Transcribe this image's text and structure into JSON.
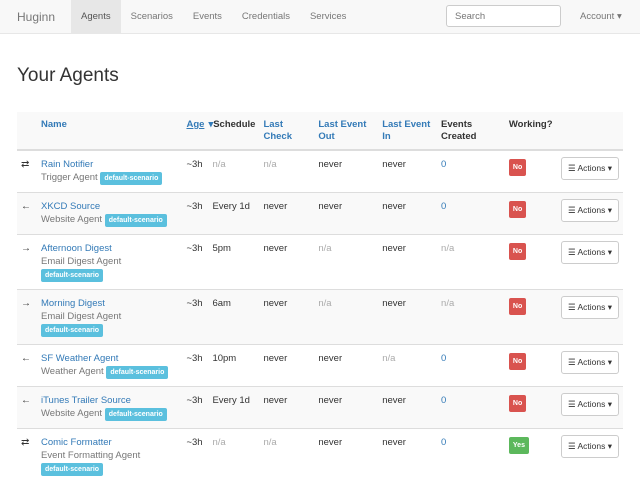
{
  "nav": {
    "brand": "Huginn",
    "items": [
      "Agents",
      "Scenarios",
      "Events",
      "Credentials",
      "Services"
    ],
    "active": "Agents",
    "search_placeholder": "Search",
    "account": "Account ▾"
  },
  "page": {
    "title": "Your Agents"
  },
  "table": {
    "headers": {
      "name": "Name",
      "age": "Age",
      "sort_icon": "▾",
      "schedule": "Schedule",
      "last_check": "Last Check",
      "last_event_out": "Last Event Out",
      "last_event_in": "Last Event In",
      "events_created": "Events Created",
      "working": "Working?"
    },
    "actions_label": "Actions",
    "rows": [
      {
        "icon": "⇄",
        "name": "Rain Notifier",
        "type": "Trigger Agent",
        "scenario": "default-scenario",
        "age": "~3h",
        "schedule": "n/a",
        "last_check": "n/a",
        "out": "never",
        "in": "never",
        "events": "0",
        "working": "No"
      },
      {
        "icon": "←",
        "name": "XKCD Source",
        "type": "Website Agent",
        "scenario": "default-scenario",
        "age": "~3h",
        "schedule": "Every 1d",
        "last_check": "never",
        "out": "never",
        "in": "never",
        "events": "0",
        "working": "No"
      },
      {
        "icon": "→",
        "name": "Afternoon Digest",
        "type": "Email Digest Agent",
        "scenario": "default-scenario",
        "age": "~3h",
        "schedule": "5pm",
        "last_check": "never",
        "out": "n/a",
        "in": "never",
        "events": "n/a",
        "working": "No"
      },
      {
        "icon": "→",
        "name": "Morning Digest",
        "type": "Email Digest Agent",
        "scenario": "default-scenario",
        "age": "~3h",
        "schedule": "6am",
        "last_check": "never",
        "out": "n/a",
        "in": "never",
        "events": "n/a",
        "working": "No"
      },
      {
        "icon": "←",
        "name": "SF Weather Agent",
        "type": "Weather Agent",
        "scenario": "default-scenario",
        "age": "~3h",
        "schedule": "10pm",
        "last_check": "never",
        "out": "never",
        "in": "n/a",
        "events": "0",
        "working": "No"
      },
      {
        "icon": "←",
        "name": "iTunes Trailer Source",
        "type": "Website Agent",
        "scenario": "default-scenario",
        "age": "~3h",
        "schedule": "Every 1d",
        "last_check": "never",
        "out": "never",
        "in": "never",
        "events": "0",
        "working": "No"
      },
      {
        "icon": "⇄",
        "name": "Comic Formatter",
        "type": "Event Formatting Agent",
        "scenario": "default-scenario",
        "age": "~3h",
        "schedule": "n/a",
        "last_check": "n/a",
        "out": "never",
        "in": "never",
        "events": "0",
        "working": "Yes"
      }
    ]
  }
}
